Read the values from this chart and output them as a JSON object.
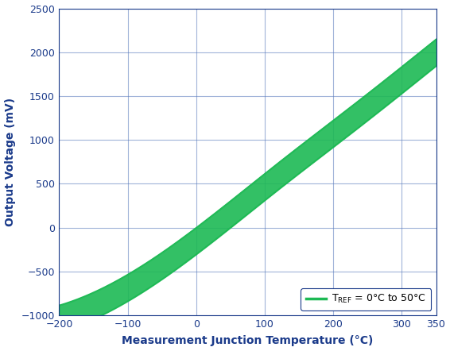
{
  "title": "",
  "xlabel": "Measurement Junction Temperature (°C)",
  "ylabel": "Output Voltage (mV)",
  "xlim": [
    -200,
    350
  ],
  "ylim": [
    -1000,
    2500
  ],
  "xticks": [
    -200,
    -100,
    0,
    100,
    200,
    300,
    350
  ],
  "yticks": [
    -1000,
    -500,
    0,
    500,
    1000,
    1500,
    2000,
    2500
  ],
  "line_color": "#1db954",
  "line_width": 2.2,
  "grid_color": "#5577bb",
  "grid_alpha": 0.55,
  "grid_linewidth": 0.8,
  "background_color": "#ffffff",
  "axis_color": "#1a3a8a",
  "label_color": "#1a3a8a",
  "tick_color": "#1a3a8a",
  "legend_line_color": "#1db954",
  "font_size_label": 10,
  "font_size_tick": 9,
  "legend_text": "T$_{\\rm REF}$ = 0°C to 50°C",
  "legend_fontsize": 9,
  "scale_factor": 150.4
}
